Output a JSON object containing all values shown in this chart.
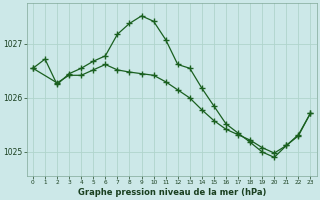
{
  "title": "Graphe pression niveau de la mer (hPa)",
  "bg_color": "#cce8e8",
  "grid_color": "#b0d4cc",
  "line_color": "#1a6020",
  "xlim": [
    -0.5,
    23.5
  ],
  "ylim": [
    1024.55,
    1027.75
  ],
  "yticks": [
    1025,
    1026,
    1027
  ],
  "xticks": [
    0,
    1,
    2,
    3,
    4,
    5,
    6,
    7,
    8,
    9,
    10,
    11,
    12,
    13,
    14,
    15,
    16,
    17,
    18,
    19,
    20,
    21,
    22,
    23
  ],
  "series1_x": [
    0,
    1,
    2,
    3,
    4,
    5,
    6,
    7,
    8,
    9,
    10,
    11,
    12,
    13,
    14,
    15,
    16,
    17,
    18,
    19,
    20,
    21,
    22,
    23
  ],
  "series1_y": [
    1026.55,
    1026.72,
    1026.25,
    1026.45,
    1026.55,
    1026.68,
    1026.78,
    1027.18,
    1027.38,
    1027.52,
    1027.42,
    1027.08,
    1026.62,
    1026.55,
    1026.18,
    1025.85,
    1025.52,
    1025.35,
    1025.18,
    1025.0,
    1024.9,
    1025.12,
    1025.3,
    1025.72
  ],
  "series2_x": [
    0,
    2,
    3,
    4,
    5,
    6,
    7,
    8,
    9,
    10,
    11,
    12,
    13,
    14,
    15,
    16,
    17,
    18,
    19,
    20,
    21,
    22,
    23
  ],
  "series2_y": [
    1026.55,
    1026.28,
    1026.42,
    1026.42,
    1026.52,
    1026.62,
    1026.52,
    1026.48,
    1026.45,
    1026.42,
    1026.3,
    1026.15,
    1026.0,
    1025.78,
    1025.58,
    1025.42,
    1025.32,
    1025.22,
    1025.08,
    1024.98,
    1025.12,
    1025.32,
    1025.72
  ]
}
